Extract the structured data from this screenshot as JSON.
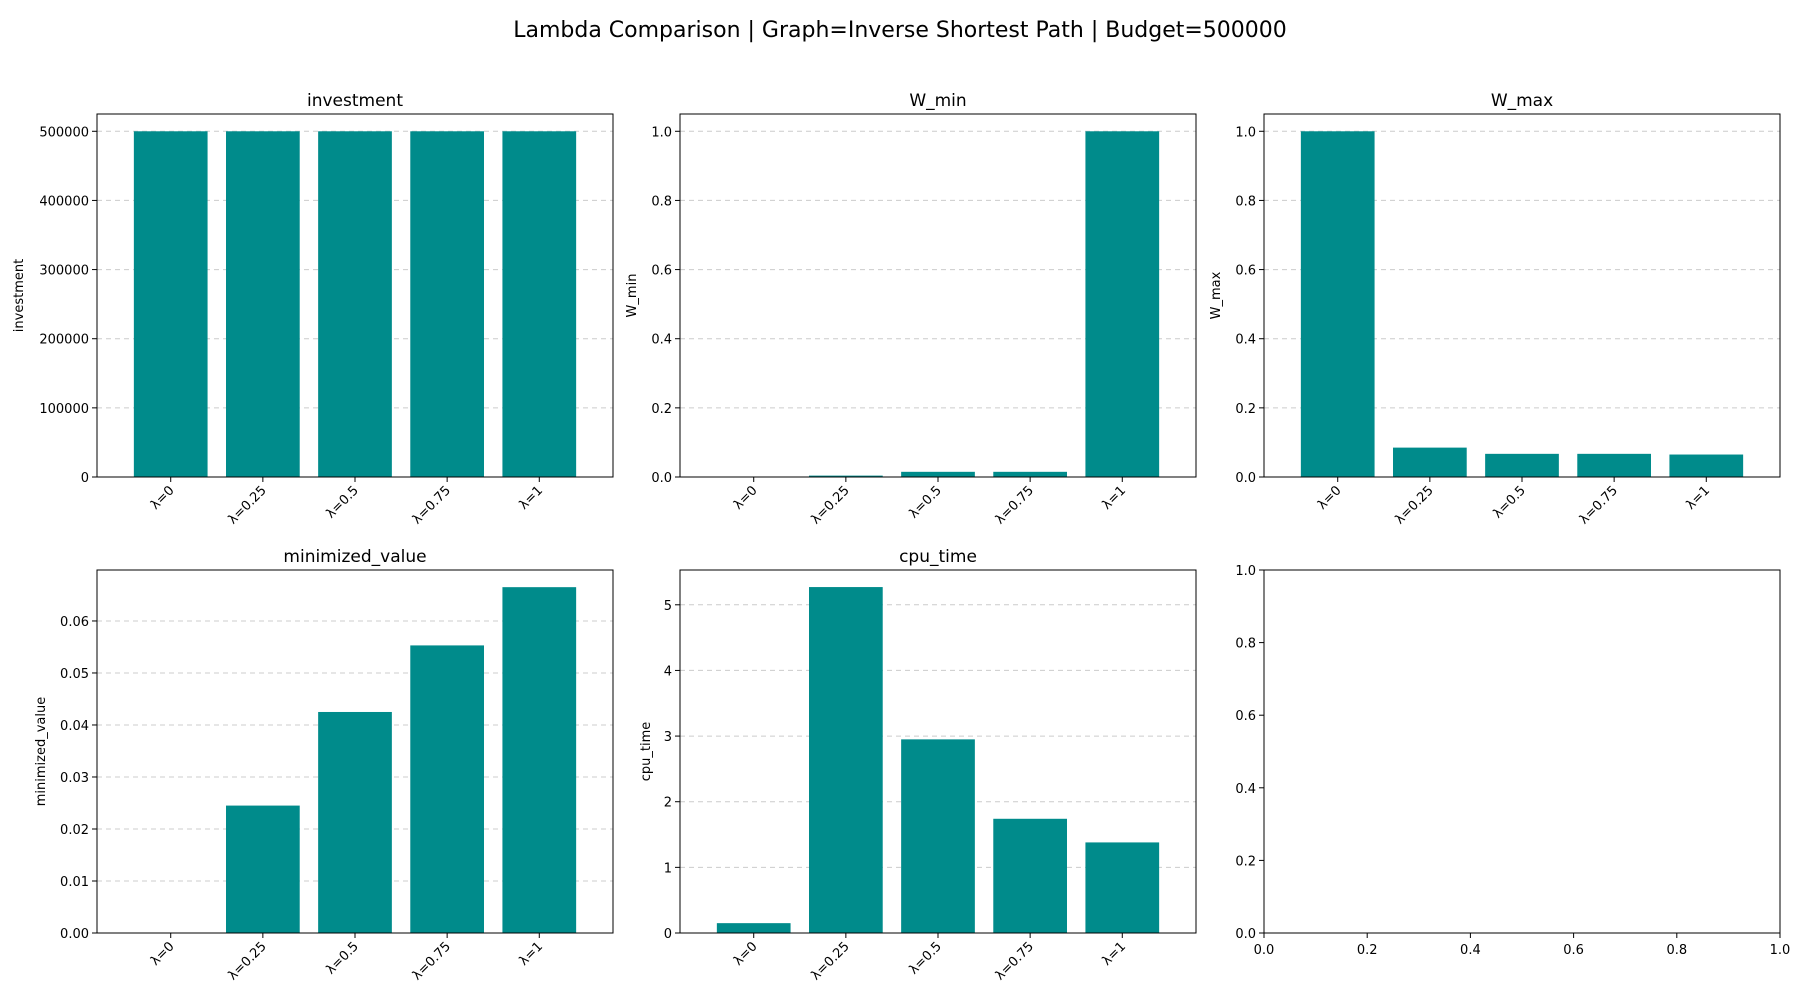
{
  "figure": {
    "suptitle": "Lambda Comparison | Graph=Inverse Shortest Path | Budget=500000",
    "bar_color": "#008b8b",
    "grid_color": "#cccccc"
  },
  "chart_data": [
    {
      "type": "bar",
      "title": "investment",
      "ylabel": "investment",
      "categories": [
        "λ=0",
        "λ=0.25",
        "λ=0.5",
        "λ=0.75",
        "λ=1"
      ],
      "values": [
        500000,
        500000,
        500000,
        500000,
        500000
      ],
      "ylim": [
        0,
        525000
      ],
      "yticks": [
        0,
        100000,
        200000,
        300000,
        400000,
        500000
      ],
      "ytick_labels": [
        "0",
        "100000",
        "200000",
        "300000",
        "400000",
        "500000"
      ],
      "grid": true
    },
    {
      "type": "bar",
      "title": "W_min",
      "ylabel": "W_min",
      "categories": [
        "λ=0",
        "λ=0.25",
        "λ=0.5",
        "λ=0.75",
        "λ=1"
      ],
      "values": [
        0.001,
        0.004,
        0.015,
        0.015,
        1.0
      ],
      "ylim": [
        0,
        1.05
      ],
      "yticks": [
        0,
        0.2,
        0.4,
        0.6,
        0.8,
        1.0
      ],
      "ytick_labels": [
        "0.0",
        "0.2",
        "0.4",
        "0.6",
        "0.8",
        "1.0"
      ],
      "grid": true
    },
    {
      "type": "bar",
      "title": "W_max",
      "ylabel": "W_max",
      "categories": [
        "λ=0",
        "λ=0.25",
        "λ=0.5",
        "λ=0.75",
        "λ=1"
      ],
      "values": [
        1.0,
        0.085,
        0.067,
        0.067,
        0.065
      ],
      "ylim": [
        0,
        1.05
      ],
      "yticks": [
        0,
        0.2,
        0.4,
        0.6,
        0.8,
        1.0
      ],
      "ytick_labels": [
        "0.0",
        "0.2",
        "0.4",
        "0.6",
        "0.8",
        "1.0"
      ],
      "grid": true
    },
    {
      "type": "bar",
      "title": "minimized_value",
      "ylabel": "minimized_value",
      "categories": [
        "λ=0",
        "λ=0.25",
        "λ=0.5",
        "λ=0.75",
        "λ=1"
      ],
      "values": [
        0.0,
        0.0245,
        0.0425,
        0.0553,
        0.0665
      ],
      "ylim": [
        0,
        0.0698
      ],
      "yticks": [
        0,
        0.01,
        0.02,
        0.03,
        0.04,
        0.05,
        0.06
      ],
      "ytick_labels": [
        "0.00",
        "0.01",
        "0.02",
        "0.03",
        "0.04",
        "0.05",
        "0.06"
      ],
      "grid": true
    },
    {
      "type": "bar",
      "title": "cpu_time",
      "ylabel": "cpu_time",
      "categories": [
        "λ=0",
        "λ=0.25",
        "λ=0.5",
        "λ=0.75",
        "λ=1"
      ],
      "values": [
        0.15,
        5.27,
        2.95,
        1.74,
        1.38
      ],
      "ylim": [
        0,
        5.53
      ],
      "yticks": [
        0,
        1,
        2,
        3,
        4,
        5
      ],
      "ytick_labels": [
        "0",
        "1",
        "2",
        "3",
        "4",
        "5"
      ],
      "grid": true
    },
    {
      "type": "empty",
      "title": "",
      "ylabel": "",
      "categories": [],
      "values": [],
      "xlim": [
        0,
        1
      ],
      "ylim": [
        0,
        1
      ],
      "xticks": [
        0,
        0.2,
        0.4,
        0.6,
        0.8,
        1.0
      ],
      "xtick_labels": [
        "0.0",
        "0.2",
        "0.4",
        "0.6",
        "0.8",
        "1.0"
      ],
      "yticks": [
        0,
        0.2,
        0.4,
        0.6,
        0.8,
        1.0
      ],
      "ytick_labels": [
        "0.0",
        "0.2",
        "0.4",
        "0.6",
        "0.8",
        "1.0"
      ],
      "grid": false
    }
  ]
}
